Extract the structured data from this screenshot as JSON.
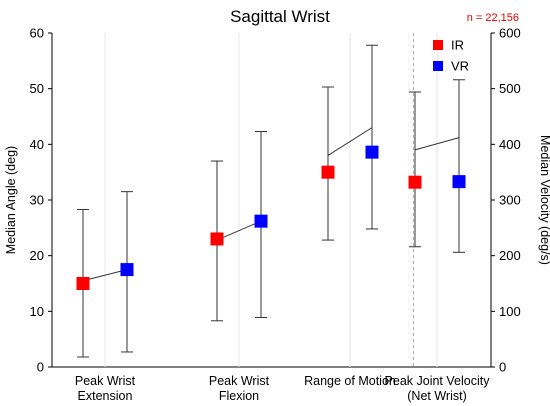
{
  "chart_data": {
    "type": "scatter",
    "title": "Sagittal Wrist",
    "annotation": "n = 22,156",
    "ylabel_left": "Median Angle (deg)",
    "ylabel_right": "Median Velocity (deg/s)",
    "ylim_left": [
      0,
      60
    ],
    "ylim_right": [
      0,
      600
    ],
    "yticks_left": [
      "0",
      "10",
      "20",
      "30",
      "40",
      "50",
      "60"
    ],
    "yticks_right": [
      "0",
      "100",
      "200",
      "300",
      "400",
      "500",
      "600"
    ],
    "categories": [
      [
        "Peak Wrist",
        "Extension"
      ],
      [
        "Peak Wrist",
        "Flexion"
      ],
      [
        "Range of Motion"
      ],
      [
        "Peak Joint Velocity",
        "(Net Wrist)"
      ]
    ],
    "legend_position": "top-right",
    "grid": "vertical",
    "series": [
      {
        "name": "IR",
        "color": "#ff0000",
        "axis": [
          "left",
          "left",
          "left",
          "right"
        ],
        "median": [
          15,
          23,
          35,
          332
        ],
        "upper": [
          28.3,
          37,
          50.3,
          494
        ],
        "lower": [
          1.8,
          8.3,
          22.8,
          216
        ]
      },
      {
        "name": "VR",
        "color": "#0000ff",
        "axis": [
          "left",
          "left",
          "left",
          "right"
        ],
        "median": [
          17.5,
          26.2,
          38.6,
          333
        ],
        "upper": [
          31.5,
          42.3,
          57.8,
          516
        ],
        "lower": [
          2.7,
          8.9,
          24.8,
          206
        ]
      }
    ],
    "connector_lines": [
      {
        "category": 0,
        "y_IR": 15.5,
        "y_VR": 17.5
      },
      {
        "category": 1,
        "y_IR": 22.8,
        "y_VR": 26.2
      },
      {
        "category": 2,
        "y_IR": 38.0,
        "y_VR": 43.0
      },
      {
        "category": 3,
        "y_IR": 39.0,
        "y_VR": 41.2
      }
    ]
  }
}
